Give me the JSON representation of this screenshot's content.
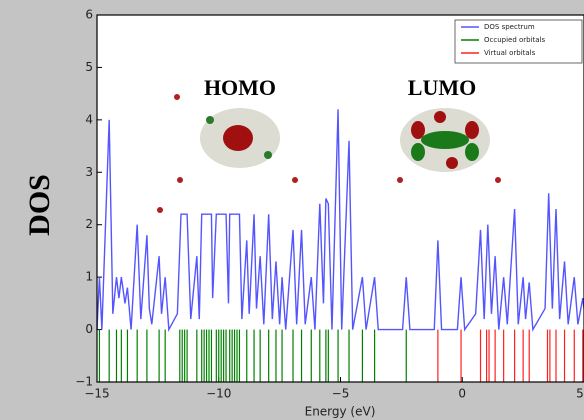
{
  "chart_data": {
    "type": "line",
    "ylabel": "DOS",
    "xlabel": "Energy (eV)",
    "annotations": [
      "HOMO",
      "LUMO"
    ],
    "xlim": [
      -15,
      5
    ],
    "ylim": [
      -1,
      6
    ],
    "xticks": [
      {
        "value": -15,
        "label": "−15"
      },
      {
        "value": -10,
        "label": "−10"
      },
      {
        "value": -5,
        "label": "−5"
      },
      0,
      5
    ],
    "yticks": [
      {
        "value": -1,
        "label": "−1"
      },
      0,
      1,
      2,
      3,
      4,
      5,
      6
    ],
    "legend": "upper right",
    "series": [
      {
        "name": "DOS spectrum",
        "color": "#5555ff",
        "x": [
          -15,
          -14.9,
          -14.8,
          -14.5,
          -14.35,
          -14.2,
          -14.1,
          -14.0,
          -13.85,
          -13.75,
          -13.6,
          -13.35,
          -13.2,
          -12.95,
          -12.85,
          -12.75,
          -12.45,
          -12.35,
          -12.2,
          -12.05,
          -11.7,
          -11.55,
          -11.3,
          -11.15,
          -10.9,
          -10.8,
          -10.7,
          -10.3,
          -10.25,
          -10.1,
          -9.7,
          -9.6,
          -9.55,
          -9.15,
          -9.05,
          -8.85,
          -8.75,
          -8.55,
          -8.45,
          -8.3,
          -8.15,
          -7.95,
          -7.8,
          -7.65,
          -7.5,
          -7.4,
          -7.25,
          -6.95,
          -6.8,
          -6.6,
          -6.45,
          -6.2,
          -6.05,
          -5.85,
          -5.7,
          -5.6,
          -5.5,
          -5.35,
          -5.1,
          -4.95,
          -4.65,
          -4.5,
          -4.1,
          -3.95,
          -3.6,
          -3.45,
          -2.45,
          -2.3,
          -2.15,
          -1.15,
          -1.0,
          -0.85,
          -0.2,
          -0.05,
          0.1,
          0.55,
          0.75,
          0.9,
          1.05,
          1.2,
          1.35,
          1.5,
          1.7,
          1.85,
          2.15,
          2.3,
          2.5,
          2.6,
          2.75,
          2.9,
          3.4,
          3.55,
          3.7,
          3.85,
          4.0,
          4.2,
          4.35,
          4.6,
          4.75,
          4.95,
          5
        ],
        "values": [
          0,
          1.0,
          0,
          4.0,
          0.3,
          1.0,
          0.6,
          1.0,
          0.5,
          0.8,
          0,
          2.0,
          0.2,
          1.8,
          0.4,
          0.1,
          1.4,
          0.3,
          1.0,
          0,
          0.3,
          2.2,
          2.2,
          0.2,
          1.4,
          0.2,
          2.2,
          2.2,
          0.6,
          2.2,
          2.2,
          0.5,
          2.2,
          2.2,
          0.2,
          1.7,
          0.3,
          2.2,
          0.4,
          1.4,
          0.1,
          2.2,
          0.2,
          1.3,
          0.1,
          1.0,
          0,
          1.9,
          0.1,
          1.9,
          0.1,
          1.0,
          0,
          2.4,
          0.5,
          2.5,
          2.4,
          0,
          4.2,
          0,
          3.6,
          0,
          1.0,
          0,
          1.0,
          0,
          0,
          1.0,
          0,
          0,
          1.7,
          0,
          0,
          1.0,
          0,
          0.3,
          1.9,
          0.2,
          2.0,
          0.3,
          1.4,
          0,
          1.0,
          0.1,
          2.3,
          0.1,
          1.0,
          0.2,
          0.9,
          0,
          0.4,
          2.6,
          0.4,
          2.3,
          0.2,
          1.3,
          0.1,
          1.0,
          0.1,
          0.6,
          0.4
        ]
      },
      {
        "name": "Occupied orbitals",
        "color": "#008000",
        "x": [
          -14.9,
          -14.5,
          -14.2,
          -14.0,
          -13.75,
          -13.35,
          -12.95,
          -12.45,
          -12.2,
          -11.6,
          -11.5,
          -11.4,
          -11.3,
          -10.9,
          -10.7,
          -10.6,
          -10.5,
          -10.4,
          -10.3,
          -10.1,
          -10.0,
          -9.9,
          -9.8,
          -9.7,
          -9.55,
          -9.45,
          -9.35,
          -9.25,
          -9.15,
          -8.85,
          -8.55,
          -8.3,
          -7.95,
          -7.65,
          -7.4,
          -6.95,
          -6.6,
          -6.2,
          -5.85,
          -5.6,
          -5.5,
          -5.1,
          -4.65,
          -4.1,
          -3.6,
          -2.3
        ]
      },
      {
        "name": "Virtual orbitals",
        "color": "#ff2020",
        "x": [
          -1.0,
          -0.05,
          0.75,
          1.0,
          1.1,
          1.35,
          1.7,
          2.15,
          2.5,
          2.75,
          3.5,
          3.6,
          3.85,
          4.2,
          4.6,
          4.95
        ]
      }
    ]
  }
}
